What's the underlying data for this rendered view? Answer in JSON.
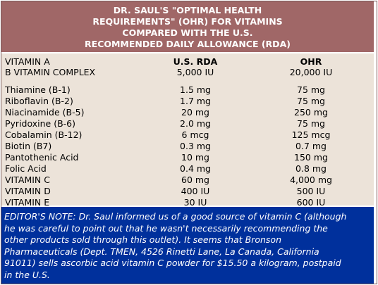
{
  "header": {
    "lines": [
      "DR. SAUL'S \"OPTIMAL HEALTH",
      "REQUIREMENTS\" (OHR) FOR VITAMINS",
      "COMPARED WITH THE U.S.",
      "RECOMMENDED DAILY ALLOWANCE (RDA)"
    ]
  },
  "table": {
    "header_row": {
      "name": "VITAMIN A",
      "rda": "U.S. RDA",
      "ohr": "OHR"
    },
    "rows": [
      {
        "name": "B VITAMIN COMPLEX",
        "rda": "5,000 IU",
        "ohr": "20,000 IU"
      },
      {
        "name": "Thiamine (B-1)",
        "rda": "1.5 mg",
        "ohr": "75 mg"
      },
      {
        "name": "Riboflavin (B-2)",
        "rda": "1.7 mg",
        "ohr": "75 mg"
      },
      {
        "name": "Niacinamide (B-5)",
        "rda": "20 mg",
        "ohr": "250 mg"
      },
      {
        "name": "Pyridoxine (B-6)",
        "rda": "2.0 mg",
        "ohr": "75 mg"
      },
      {
        "name": "Cobalamin (B-12)",
        "rda": "6 mcg",
        "ohr": "125 mcg"
      },
      {
        "name": "Biotin (B7)",
        "rda": "0.3 mg",
        "ohr": "0.7 mg"
      },
      {
        "name": "Pantothenic Acid",
        "rda": "10 mg",
        "ohr": "150 mg"
      },
      {
        "name": "Folic Acid",
        "rda": "0.4 mg",
        "ohr": "0.8 mg"
      },
      {
        "name": "VITAMIN C",
        "rda": "60 mg",
        "ohr": "4,000 mg"
      },
      {
        "name": "VITAMIN D",
        "rda": "400 IU",
        "ohr": "500 IU"
      },
      {
        "name": "VITAMIN E",
        "rda": "30 IU",
        "ohr": "600 IU"
      }
    ]
  },
  "note": {
    "lines": [
      "EDITOR'S NOTE: Dr. Saul informed us of a good source of vitamin C (although",
      "he was careful to point out that he wasn't necessarily recommending the",
      "other products sold through this outlet). It seems that Bronson",
      "Pharmaceuticals (Dept. TMEN, 4526 Rinetti Lane, La Canada, California",
      "91011) sells ascorbic acid vitamin C powder for $15.50 a kilogram, postpaid",
      "in the U.S."
    ]
  },
  "colors": {
    "header_bg": "#a06767",
    "table_bg": "#ece3d9",
    "note_bg": "#00309c"
  }
}
